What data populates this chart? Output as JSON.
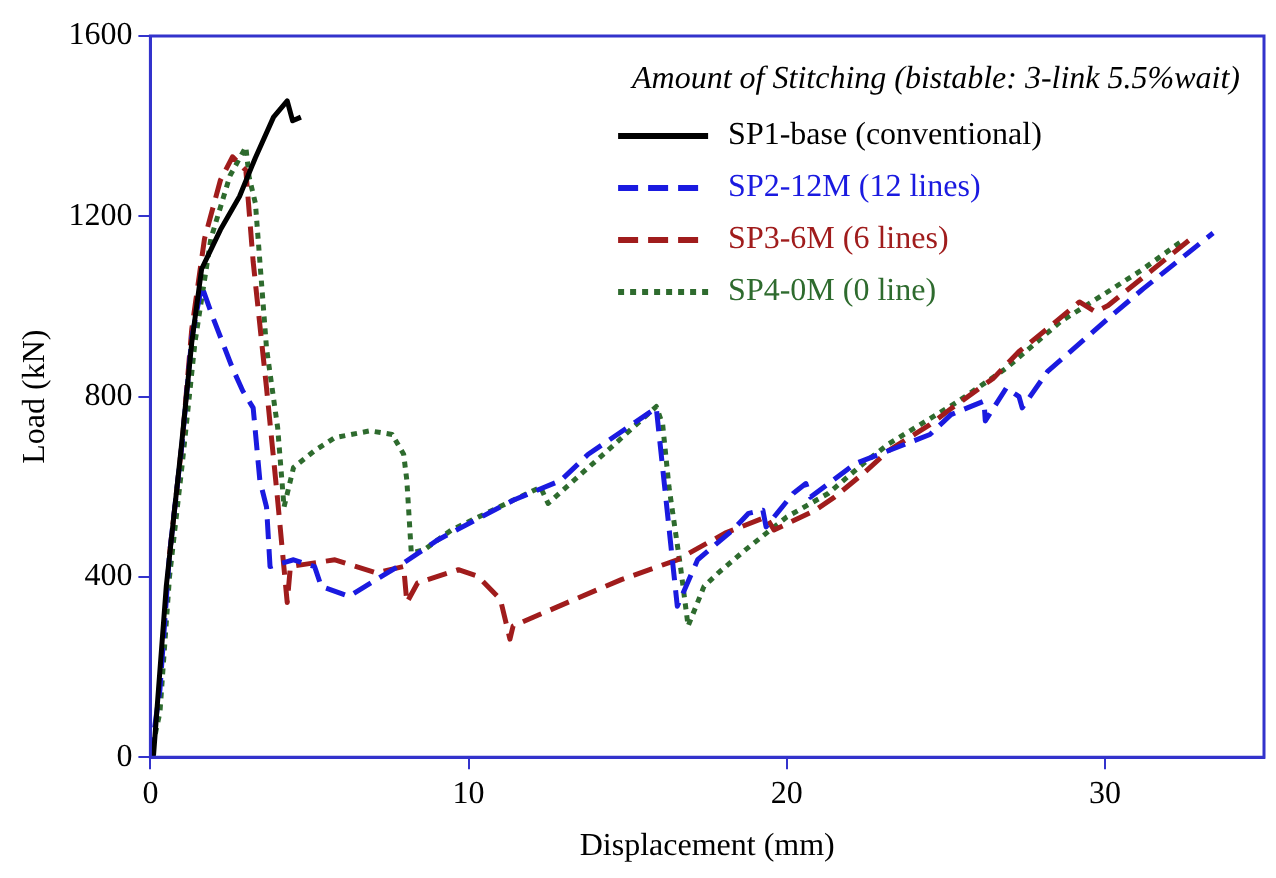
{
  "chart_data": {
    "type": "line",
    "xlabel": "Displacement (mm)",
    "ylabel": "Load (kN)",
    "legend_title": "Amount of Stitching (bistable: 3-link 5.5%wait)",
    "legend": "top right",
    "grid": false,
    "marker": "none",
    "xlim": [
      0,
      35
    ],
    "ylim": [
      0,
      1600
    ],
    "xticks": [
      0,
      10,
      20,
      30
    ],
    "yticks": [
      0,
      400,
      800,
      1200,
      1600
    ],
    "series": [
      {
        "name": "SP1-base (conventional)",
        "color": "#000000",
        "line_style": "solid",
        "x": [
          0,
          0.1,
          0.5,
          0.97,
          1.3,
          1.61,
          2.2,
          2.8,
          3.3,
          3.87,
          4.3,
          4.47,
          4.73
        ],
        "values": [
          0,
          6,
          380,
          687,
          920,
          1083,
          1170,
          1244,
          1330,
          1420,
          1456,
          1412,
          1420
        ]
      },
      {
        "name": "SP2-12M (12 lines)",
        "color": "#1a1ae0",
        "line_style": "dashed",
        "x": [
          0,
          0.3,
          0.6,
          1.0,
          1.3,
          1.61,
          1.94,
          2.58,
          2.9,
          3.23,
          3.44,
          3.65,
          3.76,
          4.5,
          5.16,
          5.37,
          6.24,
          7.96,
          9.03,
          11.4,
          12.9,
          13.76,
          15.9,
          16.56,
          17.2,
          18.3,
          18.8,
          19.25,
          19.35,
          20.2,
          20.6,
          20.75,
          22.15,
          24.5,
          25.16,
          26.2,
          26.24,
          26.9,
          27.3,
          27.4,
          28.2,
          29.5,
          30.1,
          31.2,
          33.4
        ],
        "values": [
          0,
          150,
          450,
          700,
          930,
          1046,
          980,
          863,
          813,
          775,
          614,
          555,
          423,
          438,
          423,
          379,
          357,
          431,
          482,
          570,
          614,
          672,
          775,
          335,
          438,
          504,
          541,
          548,
          511,
          585,
          607,
          577,
          651,
          716,
          760,
          790,
          746,
          819,
          800,
          775,
          856,
          936,
          973,
          1039,
          1163
        ]
      },
      {
        "name": "SP3-6M (6 lines)",
        "color": "#a01c1c",
        "line_style": "dashed",
        "x": [
          0.6,
          1.0,
          1.3,
          1.7,
          2.2,
          2.58,
          3.0,
          3.23,
          3.65,
          3.98,
          4.3,
          4.4,
          5.8,
          7.1,
          7.96,
          8.06,
          8.4,
          9.68,
          10.3,
          11.0,
          11.3,
          11.4,
          13.1,
          14.8,
          16.56,
          18.06,
          19.35,
          19.6,
          20.9,
          21.5,
          22.4,
          23.2,
          24.5,
          25.2,
          26.5,
          27.3,
          28.2,
          29.2,
          29.7,
          30.1,
          32.7
        ],
        "values": [
          450,
          700,
          950,
          1150,
          1280,
          1332,
          1302,
          1099,
          819,
          585,
          343,
          423,
          438,
          409,
          423,
          343,
          387,
          416,
          401,
          350,
          262,
          291,
          343,
          394,
          438,
          497,
          533,
          504,
          548,
          577,
          629,
          680,
          738,
          775,
          841,
          900,
          951,
          1010,
          988,
          1002,
          1150
        ]
      },
      {
        "name": "SP4-0M (0 line)",
        "color": "#2e6b2e",
        "line_style": "dotted",
        "x": [
          0,
          0.3,
          0.6,
          1.0,
          1.4,
          1.9,
          2.5,
          3.0,
          3.1,
          3.3,
          3.65,
          4.0,
          4.2,
          4.5,
          5.16,
          5.8,
          6.9,
          7.6,
          7.96,
          8.06,
          8.2,
          8.6,
          9.46,
          11.4,
          12.26,
          12.5,
          13.55,
          14.6,
          15.9,
          16.1,
          16.3,
          16.66,
          16.9,
          17.4,
          17.85,
          18.7,
          20.0,
          21.3,
          22.4,
          23.2,
          25.4,
          26.9,
          28.6,
          29.9,
          31.2,
          32.5
        ],
        "values": [
          0,
          100,
          400,
          650,
          920,
          1150,
          1290,
          1354,
          1288,
          1229,
          907,
          731,
          555,
          643,
          680,
          709,
          724,
          716,
          672,
          614,
          453,
          460,
          504,
          570,
          599,
          563,
          629,
          695,
          778,
          738,
          599,
          423,
          291,
          379,
          409,
          460,
          533,
          585,
          651,
          695,
          790,
          863,
          966,
          1024,
          1083,
          1149
        ]
      }
    ]
  }
}
